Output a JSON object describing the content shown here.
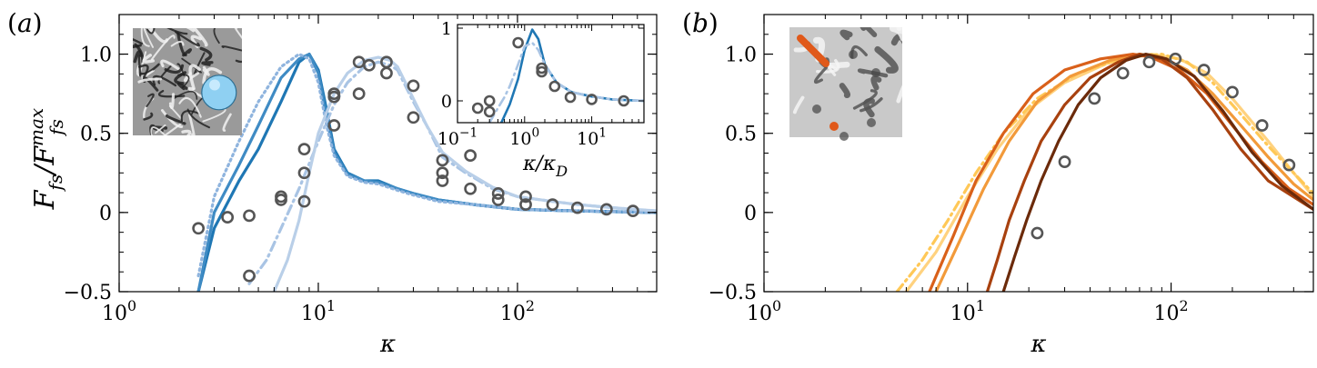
{
  "chart_data": [
    {
      "panel_label": "(a)",
      "type": "line",
      "xscale": "log",
      "xlim": [
        1,
        500
      ],
      "ylim": [
        -0.5,
        1.25
      ],
      "xlabel": "κ",
      "ylabel": "F_fs/F_fs^max",
      "xticks": [
        1,
        10,
        100
      ],
      "xtick_labels": [
        "10^0",
        "10^1",
        "10^2"
      ],
      "yticks": [
        -0.5,
        0,
        0.5,
        1.0
      ],
      "ytick_labels": [
        "−0.5",
        "0",
        "0.5",
        "1.0"
      ],
      "inset_image": "turbulence-with-sphere",
      "series": [
        {
          "style": "solid",
          "color": "#1f77b4",
          "x": [
            2.5,
            3,
            4,
            5,
            6.5,
            8,
            9,
            10,
            11,
            12,
            14,
            17,
            20,
            25,
            30,
            40,
            60,
            100,
            200,
            500
          ],
          "y": [
            -0.5,
            -0.1,
            0.2,
            0.4,
            0.7,
            0.95,
            1.0,
            0.9,
            0.65,
            0.4,
            0.25,
            0.2,
            0.2,
            0.15,
            0.12,
            0.08,
            0.05,
            0.02,
            0.01,
            0.0
          ]
        },
        {
          "style": "solid",
          "color": "#3f8bc4",
          "x": [
            2.5,
            3,
            4,
            5,
            6.5,
            8,
            9,
            10,
            11,
            12,
            14,
            17,
            20,
            25,
            30,
            40,
            60,
            100,
            200,
            500
          ],
          "y": [
            -0.5,
            0.0,
            0.3,
            0.55,
            0.85,
            0.97,
            1.0,
            0.88,
            0.6,
            0.38,
            0.24,
            0.2,
            0.19,
            0.15,
            0.12,
            0.08,
            0.05,
            0.02,
            0.01,
            0.0
          ]
        },
        {
          "style": "dotted",
          "color": "#8fb4de",
          "x": [
            2.5,
            3,
            4,
            5,
            6.5,
            8,
            9,
            10,
            11,
            12,
            14,
            17,
            20,
            25,
            30,
            40,
            60,
            100,
            200,
            500
          ],
          "y": [
            -0.4,
            0.1,
            0.45,
            0.7,
            0.92,
            1.0,
            0.97,
            0.82,
            0.55,
            0.36,
            0.23,
            0.19,
            0.18,
            0.14,
            0.11,
            0.07,
            0.05,
            0.02,
            0.01,
            0.0
          ]
        },
        {
          "style": "dashdot",
          "color": "#a9c4e4",
          "x": [
            4.5,
            5.5,
            6.5,
            8,
            10,
            12,
            14,
            17,
            20,
            23,
            25,
            30,
            35,
            42,
            55,
            75,
            100,
            150,
            200,
            300,
            500
          ],
          "y": [
            -0.45,
            -0.3,
            -0.1,
            0.15,
            0.45,
            0.68,
            0.82,
            0.92,
            0.95,
            0.93,
            0.9,
            0.7,
            0.55,
            0.35,
            0.25,
            0.15,
            0.1,
            0.07,
            0.05,
            0.03,
            0.01
          ]
        },
        {
          "style": "solid",
          "color": "#b9cfe8",
          "x": [
            6,
            7,
            8,
            9,
            10,
            12,
            14,
            17,
            20,
            23,
            25,
            30,
            35,
            42,
            55,
            75,
            100,
            150,
            200,
            300,
            500
          ],
          "y": [
            -0.5,
            -0.3,
            -0.05,
            0.25,
            0.5,
            0.75,
            0.88,
            0.96,
            0.98,
            0.96,
            0.92,
            0.72,
            0.55,
            0.38,
            0.26,
            0.16,
            0.1,
            0.07,
            0.05,
            0.03,
            0.01
          ]
        }
      ],
      "markers": {
        "style": "open-circle",
        "x": [
          2.5,
          3.5,
          4.5,
          4.5,
          6.5,
          6.5,
          8.5,
          8.5,
          8.5,
          12,
          12,
          12,
          16,
          16,
          18,
          22,
          22,
          30,
          30,
          42,
          42,
          42,
          58,
          58,
          80,
          80,
          110,
          110,
          150,
          200,
          280,
          380
        ],
        "y": [
          -0.1,
          -0.03,
          -0.4,
          -0.02,
          0.08,
          0.1,
          0.07,
          0.25,
          0.4,
          0.55,
          0.73,
          0.75,
          0.75,
          0.95,
          0.93,
          0.88,
          0.95,
          0.8,
          0.6,
          0.2,
          0.25,
          0.33,
          0.15,
          0.36,
          0.12,
          0.08,
          0.05,
          0.1,
          0.05,
          0.03,
          0.02,
          0.01
        ]
      },
      "inset": {
        "xscale": "log",
        "xlim": [
          0.1,
          60
        ],
        "ylim": [
          -0.3,
          1.05
        ],
        "xlabel": "κ/κ_D",
        "xticks": [
          0.1,
          1,
          10
        ],
        "xtick_labels": [
          "10^−1",
          "10^0",
          "10^1"
        ],
        "yticks": [
          0,
          1
        ],
        "ytick_labels": [
          "0",
          "1"
        ],
        "series": [
          {
            "style": "solid",
            "color": "#1f77b4",
            "x": [
              0.45,
              0.6,
              0.8,
              1.0,
              1.3,
              1.6,
              2.0,
              3.0,
              5.0,
              10,
              20,
              60
            ],
            "y": [
              -0.3,
              -0.05,
              0.3,
              0.7,
              0.98,
              0.85,
              0.5,
              0.25,
              0.12,
              0.06,
              0.02,
              0.0
            ]
          },
          {
            "style": "dashdot",
            "color": "#a9c4e4",
            "x": [
              0.3,
              0.4,
              0.5,
              0.6,
              0.8,
              1.0,
              1.3,
              1.6,
              2.0,
              3.0,
              5.0,
              10,
              20,
              60
            ],
            "y": [
              -0.3,
              -0.1,
              0.05,
              0.2,
              0.5,
              0.75,
              0.8,
              0.7,
              0.5,
              0.25,
              0.12,
              0.06,
              0.02,
              0.0
            ]
          }
        ],
        "markers": {
          "style": "open-circle",
          "x": [
            0.2,
            0.3,
            0.3,
            0.8,
            1.8,
            1.8,
            2.8,
            4.8,
            10,
            30
          ],
          "y": [
            -0.1,
            0.0,
            -0.15,
            0.8,
            0.4,
            0.45,
            0.2,
            0.05,
            0.02,
            0.0
          ]
        }
      }
    },
    {
      "panel_label": "(b)",
      "type": "line",
      "xscale": "log",
      "xlim": [
        1,
        500
      ],
      "ylim": [
        -0.5,
        1.25
      ],
      "xlabel": "κ",
      "xticks": [
        1,
        10,
        100
      ],
      "xtick_labels": [
        "10^0",
        "10^1",
        "10^2"
      ],
      "yticks": [
        -0.5,
        0,
        0.5,
        1.0
      ],
      "ytick_labels": [
        "−0.5",
        "0",
        "0.5",
        "1.0"
      ],
      "inset_image": "turbulence-with-rod",
      "series": [
        {
          "style": "solid",
          "color": "#ffd27f",
          "x": [
            5,
            7,
            10,
            14,
            20,
            30,
            50,
            80,
            110,
            150,
            200,
            300,
            400,
            500
          ],
          "y": [
            -0.5,
            -0.25,
            0.1,
            0.4,
            0.65,
            0.82,
            0.95,
            1.0,
            0.97,
            0.88,
            0.72,
            0.45,
            0.25,
            0.1
          ]
        },
        {
          "style": "dashdot",
          "color": "#ffc857",
          "x": [
            4.5,
            6,
            8,
            11,
            15,
            22,
            35,
            60,
            90,
            120,
            160,
            220,
            300,
            400,
            500
          ],
          "y": [
            -0.5,
            -0.3,
            -0.05,
            0.25,
            0.5,
            0.72,
            0.88,
            0.98,
            1.0,
            0.95,
            0.82,
            0.62,
            0.42,
            0.25,
            0.12
          ]
        },
        {
          "style": "solid",
          "color": "#f29a3a",
          "x": [
            7,
            9,
            12,
            16,
            22,
            32,
            50,
            70,
            90,
            120,
            160,
            220,
            300,
            400,
            500
          ],
          "y": [
            -0.5,
            -0.2,
            0.15,
            0.45,
            0.7,
            0.86,
            0.96,
            1.0,
            0.98,
            0.9,
            0.75,
            0.55,
            0.35,
            0.18,
            0.08
          ]
        },
        {
          "style": "solid",
          "color": "#d9601a",
          "x": [
            6.5,
            8.5,
            11,
            15,
            21,
            30,
            45,
            65,
            80,
            110,
            150,
            200,
            280,
            380,
            500
          ],
          "y": [
            -0.5,
            -0.15,
            0.2,
            0.5,
            0.75,
            0.9,
            0.97,
            1.0,
            0.98,
            0.9,
            0.75,
            0.55,
            0.32,
            0.15,
            0.05
          ]
        },
        {
          "style": "solid",
          "color": "#a8410f",
          "x": [
            12.5,
            14,
            16,
            19,
            23,
            30,
            40,
            55,
            70,
            90,
            120,
            160,
            220,
            300,
            500
          ],
          "y": [
            -0.5,
            -0.3,
            -0.05,
            0.2,
            0.45,
            0.68,
            0.85,
            0.95,
            1.0,
            0.97,
            0.85,
            0.65,
            0.4,
            0.2,
            0.02
          ]
        },
        {
          "style": "solid",
          "color": "#6b2a0a",
          "x": [
            15,
            17,
            19.5,
            23,
            28,
            35,
            45,
            60,
            75,
            95,
            130,
            180,
            250,
            350,
            500
          ],
          "y": [
            -0.5,
            -0.28,
            -0.05,
            0.2,
            0.45,
            0.68,
            0.85,
            0.96,
            1.0,
            0.97,
            0.86,
            0.64,
            0.38,
            0.17,
            0.02
          ]
        }
      ],
      "markers": {
        "style": "open-circle",
        "x": [
          22,
          30,
          42,
          58,
          78,
          105,
          145,
          200,
          280,
          380
        ],
        "y": [
          -0.13,
          0.32,
          0.72,
          0.88,
          0.95,
          0.97,
          0.9,
          0.76,
          0.55,
          0.3
        ]
      }
    }
  ]
}
